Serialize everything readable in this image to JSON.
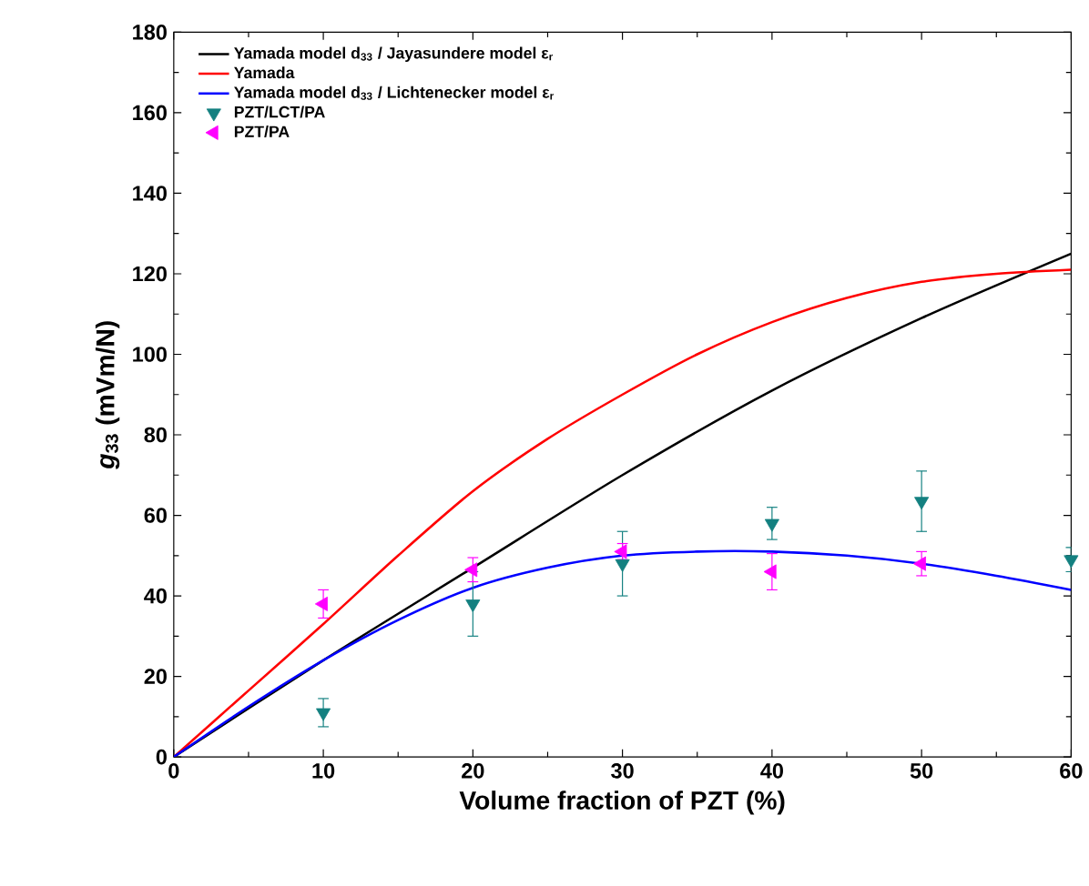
{
  "chart_data": {
    "type": "line",
    "xlabel": "Volume fraction of PZT (%)",
    "ylabel": "*g*$_{33}$ (mVm/N)",
    "xlim": [
      0,
      60
    ],
    "xticks": [
      0,
      10,
      20,
      30,
      40,
      50,
      60
    ],
    "ylim": [
      0,
      180
    ],
    "yticks": [
      0,
      20,
      40,
      60,
      80,
      100,
      120,
      140,
      160,
      180
    ],
    "legend": "top left",
    "grid": false,
    "series": [
      {
        "name": "Yamada model d$_{33}$ / Jayasundere model ε$_{r}$",
        "color": "#000000",
        "marker": "none",
        "x": [
          0,
          10,
          20,
          30,
          40,
          50,
          60
        ],
        "values": [
          0,
          24,
          47,
          70,
          91,
          109,
          125
        ]
      },
      {
        "name": "Yamada",
        "color": "#ff0000",
        "marker": "none",
        "x": [
          0,
          5,
          10,
          15,
          20,
          25,
          30,
          35,
          40,
          45,
          50,
          55,
          60
        ],
        "values": [
          0,
          16.5,
          33,
          50,
          66,
          79,
          90,
          100,
          108,
          114,
          118,
          120,
          121
        ]
      },
      {
        "name": "Yamada model d$_{33}$ / Lichtenecker model ε$_{r}$",
        "color": "#0000ff",
        "marker": "none",
        "x": [
          0,
          5,
          10,
          15,
          20,
          25,
          30,
          35,
          40,
          45,
          50,
          55,
          60
        ],
        "values": [
          0,
          12.5,
          24,
          34,
          42,
          47,
          50,
          51,
          51,
          50,
          48,
          45,
          41.5
        ]
      },
      {
        "name": "PZT/LCT/PA",
        "type": "scatter",
        "color": "#138080",
        "marker": "triangle down",
        "x": [
          10,
          20,
          30,
          40,
          50,
          60
        ],
        "values": [
          11,
          38,
          48,
          58,
          63.5,
          49
        ],
        "errors": [
          3.5,
          8,
          8,
          4,
          7.5,
          3
        ]
      },
      {
        "name": "PZT/PA",
        "type": "scatter",
        "color": "#ff00ff",
        "marker": "triangle left",
        "x": [
          10,
          20,
          30,
          40,
          50
        ],
        "values": [
          38,
          46.5,
          51,
          46,
          48
        ],
        "errors": [
          3.5,
          3,
          2,
          4.5,
          3
        ]
      }
    ]
  }
}
